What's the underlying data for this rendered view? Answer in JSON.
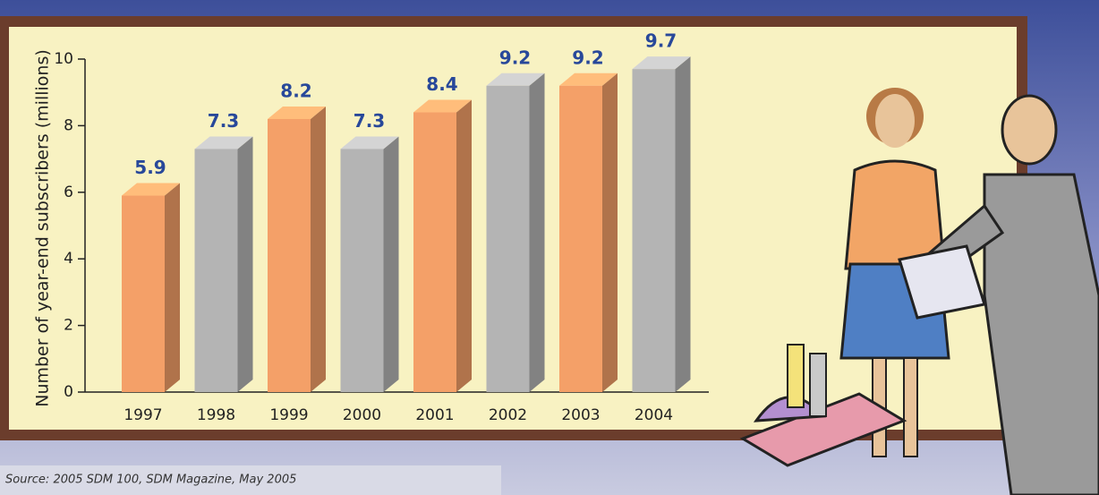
{
  "chart_data": {
    "type": "bar3d",
    "y_label": "Number of year-end subscribers (millions)",
    "categories": [
      "1997",
      "1998",
      "1999",
      "2000",
      "2001",
      "2002",
      "2003",
      "2004"
    ],
    "values": [
      5.9,
      7.3,
      8.2,
      7.3,
      8.4,
      9.2,
      9.2,
      9.7
    ],
    "colors": [
      "#f4a068",
      "#b4b4b4",
      "#f4a068",
      "#b4b4b4",
      "#f4a068",
      "#b4b4b4",
      "#f4a068",
      "#b4b4b4"
    ],
    "label_color": "#28489a",
    "ylim": [
      0,
      10
    ],
    "yticks": [
      0,
      2,
      4,
      6,
      8,
      10
    ],
    "source": "Source: 2005 SDM 100, SDM Magazine, May 2005"
  }
}
